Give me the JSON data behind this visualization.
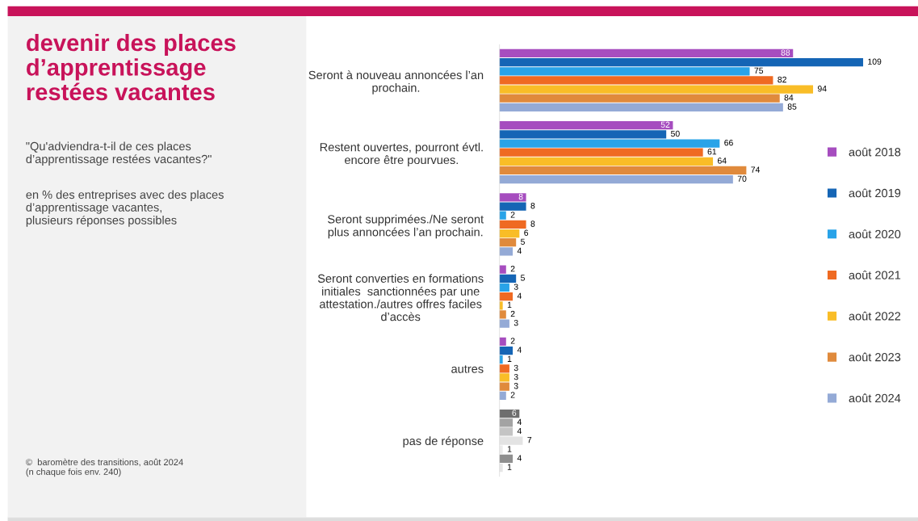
{
  "chart_data": {
    "type": "bar",
    "orientation": "horizontal",
    "title": "devenir des places\nd’apprentissage\nrestées vacantes",
    "subtitle": "\"Qu'adviendra-t-il de ces places\nd’apprentissage restées vacantes?\"",
    "annotations": [
      "en % des entreprises avec des places\nd’apprentissage vacantes,\nplusieurs réponses possibles",
      "©  baromètre des transitions, août 2024\n(n chaque fois env. 240)"
    ],
    "categories": [
      "Seront à nouveau annoncées l’an\nprochain.",
      "Restent ouvertes, pourront évtl.\nencore être pourvues.",
      "Seront supprimées./Ne seront\nplus annoncées l’an prochain.",
      "Seront converties en formations\ninitiales  sanctionnées par une\nattestation./autres offres faciles\nd’accès",
      "autres",
      "pas de réponse"
    ],
    "series": [
      {
        "name": "août 2018",
        "color": "#a64dbf",
        "colors": [
          "#a64dbf",
          "#a64dbf",
          "#a64dbf",
          "#a64dbf",
          "#a64dbf",
          "#6e6e6e"
        ],
        "values": [
          88,
          52,
          8,
          2,
          2,
          6
        ]
      },
      {
        "name": "août 2019",
        "color": "#1565b5",
        "colors": [
          "#1565b5",
          "#1565b5",
          "#1565b5",
          "#1565b5",
          "#1565b5",
          "#a3a3a3"
        ],
        "values": [
          109,
          50,
          8,
          5,
          4,
          4
        ]
      },
      {
        "name": "août 2020",
        "color": "#29a3e8",
        "colors": [
          "#29a3e8",
          "#29a3e8",
          "#29a3e8",
          "#29a3e8",
          "#29a3e8",
          "#c4c4c4"
        ],
        "values": [
          75,
          66,
          2,
          3,
          1,
          4
        ]
      },
      {
        "name": "août 2021",
        "color": "#ef6a22",
        "colors": [
          "#ef6a22",
          "#ef6a22",
          "#ef6a22",
          "#ef6a22",
          "#ef6a22",
          "#e3e3e3"
        ],
        "values": [
          82,
          61,
          8,
          4,
          3,
          7
        ]
      },
      {
        "name": "août 2022",
        "color": "#f9bd27",
        "colors": [
          "#f9bd27",
          "#f9bd27",
          "#f9bd27",
          "#f9bd27",
          "#f9bd27",
          "#ebebeb"
        ],
        "values": [
          94,
          64,
          6,
          1,
          3,
          1
        ]
      },
      {
        "name": "août 2023",
        "color": "#e08a3c",
        "colors": [
          "#e08a3c",
          "#e08a3c",
          "#e08a3c",
          "#e08a3c",
          "#e08a3c",
          "#8f8f8f"
        ],
        "values": [
          84,
          74,
          5,
          2,
          3,
          4
        ]
      },
      {
        "name": "août 2024",
        "color": "#94aad6",
        "colors": [
          "#94aad6",
          "#94aad6",
          "#94aad6",
          "#94aad6",
          "#94aad6",
          "#e6e6e6"
        ],
        "values": [
          85,
          70,
          4,
          3,
          2,
          1
        ]
      }
    ],
    "data_labels": true,
    "legend": "right",
    "grid": false
  }
}
